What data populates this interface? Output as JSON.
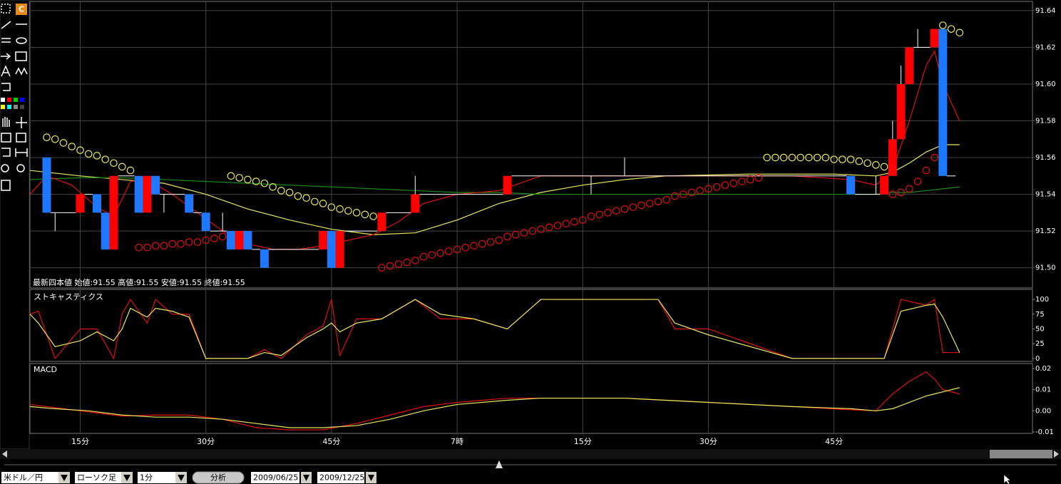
{
  "toolbar": {
    "c_button": "C"
  },
  "time_axis": {
    "xlim": [
      9,
      128.7
    ],
    "xticks": [
      {
        "value": 15,
        "label": "15分"
      },
      {
        "value": 30,
        "label": "30分"
      },
      {
        "value": 45,
        "label": "45分"
      },
      {
        "value": 60,
        "label": "7時"
      },
      {
        "value": 75,
        "label": "15分"
      },
      {
        "value": 90,
        "label": "30分"
      },
      {
        "value": 105,
        "label": "45分"
      }
    ]
  },
  "price_chart": {
    "type": "candlestick",
    "info": "最新四本値 始値:91.55 高値:91.55 安値:91.55 終値:91.55",
    "ylim": [
      91.489,
      91.645
    ],
    "grid": true,
    "yticks": [
      {
        "value": 91.5,
        "label": "91.50"
      },
      91.52,
      91.54,
      91.56,
      91.58,
      {
        "value": 91.6,
        "label": "91.60"
      },
      91.62,
      91.64
    ],
    "up_color": "#ff0000",
    "down_color": "#1e78ff",
    "wick_color": "#ffffff",
    "candles": {
      "x": [
        11,
        12,
        15,
        17,
        18,
        19,
        22,
        23,
        24,
        25,
        28,
        30,
        32,
        33,
        34,
        35,
        37,
        38,
        44,
        45,
        46,
        51,
        55,
        66,
        76,
        80,
        107,
        110,
        111,
        112,
        113,
        114,
        115,
        117,
        118,
        119
      ],
      "open": [
        91.56,
        91.53,
        91.53,
        91.54,
        91.53,
        91.51,
        91.55,
        91.53,
        91.55,
        91.54,
        91.54,
        91.53,
        91.52,
        91.52,
        91.51,
        91.52,
        91.51,
        91.51,
        91.51,
        91.52,
        91.5,
        91.52,
        91.53,
        91.54,
        91.55,
        91.55,
        91.55,
        91.54,
        91.54,
        91.55,
        91.57,
        91.6,
        91.62,
        91.62,
        91.63,
        91.55
      ],
      "high": [
        91.56,
        91.53,
        91.54,
        91.54,
        91.53,
        91.55,
        91.55,
        91.55,
        91.55,
        91.54,
        91.54,
        91.53,
        91.53,
        91.52,
        91.52,
        91.52,
        91.51,
        91.51,
        91.52,
        91.52,
        91.52,
        91.53,
        91.55,
        91.55,
        91.55,
        91.56,
        91.55,
        91.55,
        91.55,
        91.58,
        91.61,
        91.62,
        91.63,
        91.63,
        91.63,
        91.55
      ],
      "low": [
        91.53,
        91.52,
        91.53,
        91.53,
        91.51,
        91.51,
        91.53,
        91.53,
        91.54,
        91.53,
        91.53,
        91.52,
        91.52,
        91.51,
        91.51,
        91.51,
        91.5,
        91.51,
        91.51,
        91.5,
        91.5,
        91.52,
        91.53,
        91.54,
        91.54,
        91.55,
        91.54,
        91.54,
        91.54,
        91.55,
        91.57,
        91.6,
        91.62,
        91.62,
        91.55,
        91.55
      ],
      "close": [
        91.53,
        91.53,
        91.54,
        91.53,
        91.51,
        91.55,
        91.53,
        91.55,
        91.54,
        91.54,
        91.53,
        91.52,
        91.52,
        91.51,
        91.52,
        91.51,
        91.5,
        91.51,
        91.52,
        91.5,
        91.52,
        91.53,
        91.54,
        91.55,
        91.55,
        91.55,
        91.54,
        91.54,
        91.55,
        91.57,
        91.6,
        91.62,
        91.62,
        91.63,
        91.55,
        91.55
      ]
    },
    "lines": [
      {
        "color": "#e8e860",
        "x": [
          9,
          15,
          20,
          25,
          30,
          35,
          40,
          45,
          50,
          55,
          60,
          65,
          70,
          75,
          80,
          85,
          90,
          95,
          100,
          105,
          110,
          112,
          114,
          116,
          118,
          120
        ],
        "values": [
          91.553,
          91.55,
          91.548,
          91.546,
          91.54,
          91.532,
          91.526,
          91.521,
          91.518,
          91.519,
          91.526,
          91.535,
          91.541,
          91.545,
          91.548,
          91.55,
          91.5505,
          91.551,
          91.551,
          91.551,
          91.55,
          91.552,
          91.557,
          91.563,
          91.567,
          91.567
        ]
      },
      {
        "color": "#1a8c1a",
        "x": [
          9,
          15,
          20,
          25,
          30,
          35,
          40,
          45,
          50,
          55,
          60,
          65,
          70,
          75,
          80,
          85,
          90,
          95,
          100,
          105,
          110,
          112,
          114,
          116,
          118,
          120
        ],
        "values": [
          91.548,
          91.549,
          91.549,
          91.548,
          91.547,
          91.546,
          91.545,
          91.544,
          91.543,
          91.542,
          91.541,
          91.541,
          91.54,
          91.54,
          91.54,
          91.54,
          91.54,
          91.54,
          91.54,
          91.54,
          91.54,
          91.541,
          91.541,
          91.542,
          91.543,
          91.544
        ]
      },
      {
        "color": "#e01010",
        "x": [
          9,
          11,
          14,
          17,
          19,
          21,
          23,
          26,
          29,
          32,
          35,
          38,
          41,
          44,
          47,
          50,
          53,
          56,
          60,
          65,
          70,
          80,
          90,
          100,
          107,
          110,
          112,
          114,
          116,
          117,
          118,
          120
        ],
        "values": [
          91.54,
          91.55,
          91.545,
          91.533,
          91.528,
          91.547,
          91.548,
          91.54,
          91.53,
          91.52,
          91.513,
          91.51,
          91.51,
          91.512,
          91.515,
          91.518,
          91.525,
          91.535,
          91.54,
          91.542,
          91.55,
          91.55,
          91.55,
          91.55,
          91.548,
          91.545,
          91.553,
          91.58,
          91.61,
          91.618,
          91.6,
          91.58
        ]
      }
    ],
    "sar": [
      {
        "color": "#e8e860",
        "x": [
          11,
          12,
          13,
          14,
          15,
          16,
          17,
          18,
          19,
          20,
          21
        ],
        "values": [
          91.571,
          91.57,
          91.568,
          91.566,
          91.564,
          91.562,
          91.561,
          91.559,
          91.557,
          91.555,
          91.553
        ]
      },
      {
        "color": "#e01010",
        "x": [
          22,
          23,
          24,
          25,
          26,
          27,
          28,
          29,
          30,
          31,
          32
        ],
        "values": [
          91.511,
          91.511,
          91.512,
          91.512,
          91.513,
          91.513,
          91.514,
          91.514,
          91.515,
          91.516,
          91.517
        ]
      },
      {
        "color": "#e8e860",
        "x": [
          33,
          34,
          35,
          36,
          37,
          38,
          39,
          40,
          41,
          42,
          43,
          44,
          45,
          46,
          47,
          48,
          49,
          50
        ],
        "values": [
          91.55,
          91.549,
          91.548,
          91.547,
          91.546,
          91.544,
          91.542,
          91.541,
          91.539,
          91.538,
          91.536,
          91.535,
          91.533,
          91.532,
          91.531,
          91.53,
          91.529,
          91.528
        ]
      },
      {
        "color": "#e01010",
        "x": [
          51,
          52,
          53,
          54,
          55,
          56,
          57,
          58,
          59,
          60,
          61,
          62,
          63,
          64,
          65,
          66,
          67,
          68,
          69,
          70,
          71,
          72,
          73,
          74,
          75,
          76,
          77,
          78,
          79,
          80,
          81,
          82,
          83,
          84,
          85,
          86,
          87,
          88,
          89,
          90,
          91,
          92,
          93,
          94,
          95,
          96
        ],
        "values": [
          91.5,
          91.501,
          91.502,
          91.503,
          91.504,
          91.506,
          91.507,
          91.508,
          91.509,
          91.51,
          91.511,
          91.512,
          91.513,
          91.514,
          91.515,
          91.517,
          91.518,
          91.519,
          91.52,
          91.521,
          91.522,
          91.523,
          91.524,
          91.525,
          91.526,
          91.528,
          91.529,
          91.53,
          91.531,
          91.532,
          91.533,
          91.534,
          91.535,
          91.536,
          91.537,
          91.539,
          91.54,
          91.541,
          91.542,
          91.543,
          91.544,
          91.545,
          91.546,
          91.547,
          91.548,
          91.549
        ]
      },
      {
        "color": "#e8e860",
        "x": [
          97,
          98,
          99,
          100,
          101,
          102,
          103,
          104,
          105,
          106,
          107,
          108,
          109,
          110,
          111
        ],
        "values": [
          91.56,
          91.56,
          91.56,
          91.56,
          91.56,
          91.56,
          91.56,
          91.56,
          91.559,
          91.559,
          91.559,
          91.558,
          91.557,
          91.556,
          91.555
        ]
      },
      {
        "color": "#e01010",
        "x": [
          112,
          113,
          114,
          115,
          116,
          117
        ],
        "values": [
          91.54,
          91.541,
          91.543,
          91.547,
          91.553,
          91.56
        ]
      },
      {
        "color": "#e8e860",
        "x": [
          118,
          119,
          120
        ],
        "values": [
          91.632,
          91.63,
          91.628
        ]
      }
    ]
  },
  "stochastics": {
    "type": "line",
    "title": "ストキャスティクス",
    "ylim": [
      -5,
      117
    ],
    "yticks": [
      0,
      25,
      50,
      75,
      100
    ],
    "grid": false,
    "lines": [
      {
        "color": "#e01010",
        "x": [
          9,
          10,
          12,
          15,
          17,
          19,
          20,
          21,
          23,
          24,
          26,
          28,
          30,
          33,
          35,
          37,
          39,
          42,
          44,
          45,
          46,
          48,
          51,
          55,
          58,
          62,
          66,
          70,
          80,
          84,
          86,
          90,
          100,
          110,
          111,
          113,
          116,
          117,
          118,
          120
        ],
        "values": [
          75,
          80,
          0,
          50,
          50,
          0,
          75,
          100,
          60,
          100,
          75,
          75,
          0,
          0,
          0,
          15,
          0,
          40,
          55,
          100,
          5,
          67,
          67,
          100,
          67,
          67,
          50,
          100,
          100,
          100,
          50,
          50,
          0,
          0,
          0,
          100,
          90,
          100,
          10,
          10
        ]
      },
      {
        "color": "#e8e860",
        "x": [
          9,
          10,
          12,
          15,
          17,
          19,
          20,
          21,
          23,
          24,
          26,
          28,
          30,
          33,
          35,
          37,
          39,
          42,
          44,
          45,
          46,
          48,
          51,
          55,
          58,
          62,
          66,
          70,
          80,
          84,
          86,
          90,
          100,
          110,
          111,
          113,
          116,
          117,
          118,
          120
        ],
        "values": [
          75,
          60,
          20,
          30,
          45,
          30,
          50,
          85,
          70,
          85,
          80,
          70,
          0,
          0,
          0,
          10,
          5,
          35,
          50,
          60,
          45,
          60,
          67,
          100,
          75,
          67,
          50,
          100,
          100,
          100,
          60,
          40,
          0,
          0,
          0,
          80,
          90,
          92,
          70,
          10
        ]
      }
    ]
  },
  "macd": {
    "type": "line",
    "title": "MACD",
    "ylim": [
      -0.0107,
      0.0224
    ],
    "yticks": [
      {
        "value": -0.01,
        "label": "-0.01"
      },
      {
        "value": 0,
        "label": "0.00"
      },
      0.01,
      0.02
    ],
    "grid": false,
    "lines": [
      {
        "color": "#e01010",
        "x": [
          9,
          12,
          16,
          20,
          24,
          28,
          32,
          36,
          40,
          44,
          48,
          52,
          56,
          60,
          66,
          70,
          76,
          80,
          90,
          100,
          107,
          110,
          112,
          114,
          116,
          117,
          118,
          120
        ],
        "values": [
          0.003,
          0.0015,
          -0.0005,
          -0.0025,
          -0.002,
          -0.002,
          -0.004,
          -0.008,
          -0.009,
          -0.009,
          -0.006,
          -0.002,
          0.002,
          0.004,
          0.006,
          0.006,
          0.006,
          0.006,
          0.004,
          0.002,
          0.0005,
          0,
          0.008,
          0.014,
          0.0185,
          0.015,
          0.01,
          0.008
        ]
      },
      {
        "color": "#e8e860",
        "x": [
          9,
          12,
          16,
          20,
          24,
          28,
          32,
          36,
          40,
          44,
          48,
          52,
          56,
          60,
          66,
          70,
          76,
          80,
          90,
          100,
          107,
          110,
          112,
          114,
          116,
          117,
          118,
          120
        ],
        "values": [
          0.002,
          0.001,
          0,
          -0.002,
          -0.003,
          -0.003,
          -0.004,
          -0.006,
          -0.008,
          -0.008,
          -0.007,
          -0.004,
          0,
          0.003,
          0.005,
          0.006,
          0.006,
          0.006,
          0.004,
          0.002,
          0.001,
          0,
          0.001,
          0.004,
          0.007,
          0.008,
          0.009,
          0.011
        ]
      }
    ]
  },
  "controls": {
    "pair": "米ドル／円",
    "chart_type": "ローソク足",
    "interval": "1分",
    "analyze_button": "分析",
    "date_from": "2009/06/25",
    "date_to": "2009/12/25"
  }
}
